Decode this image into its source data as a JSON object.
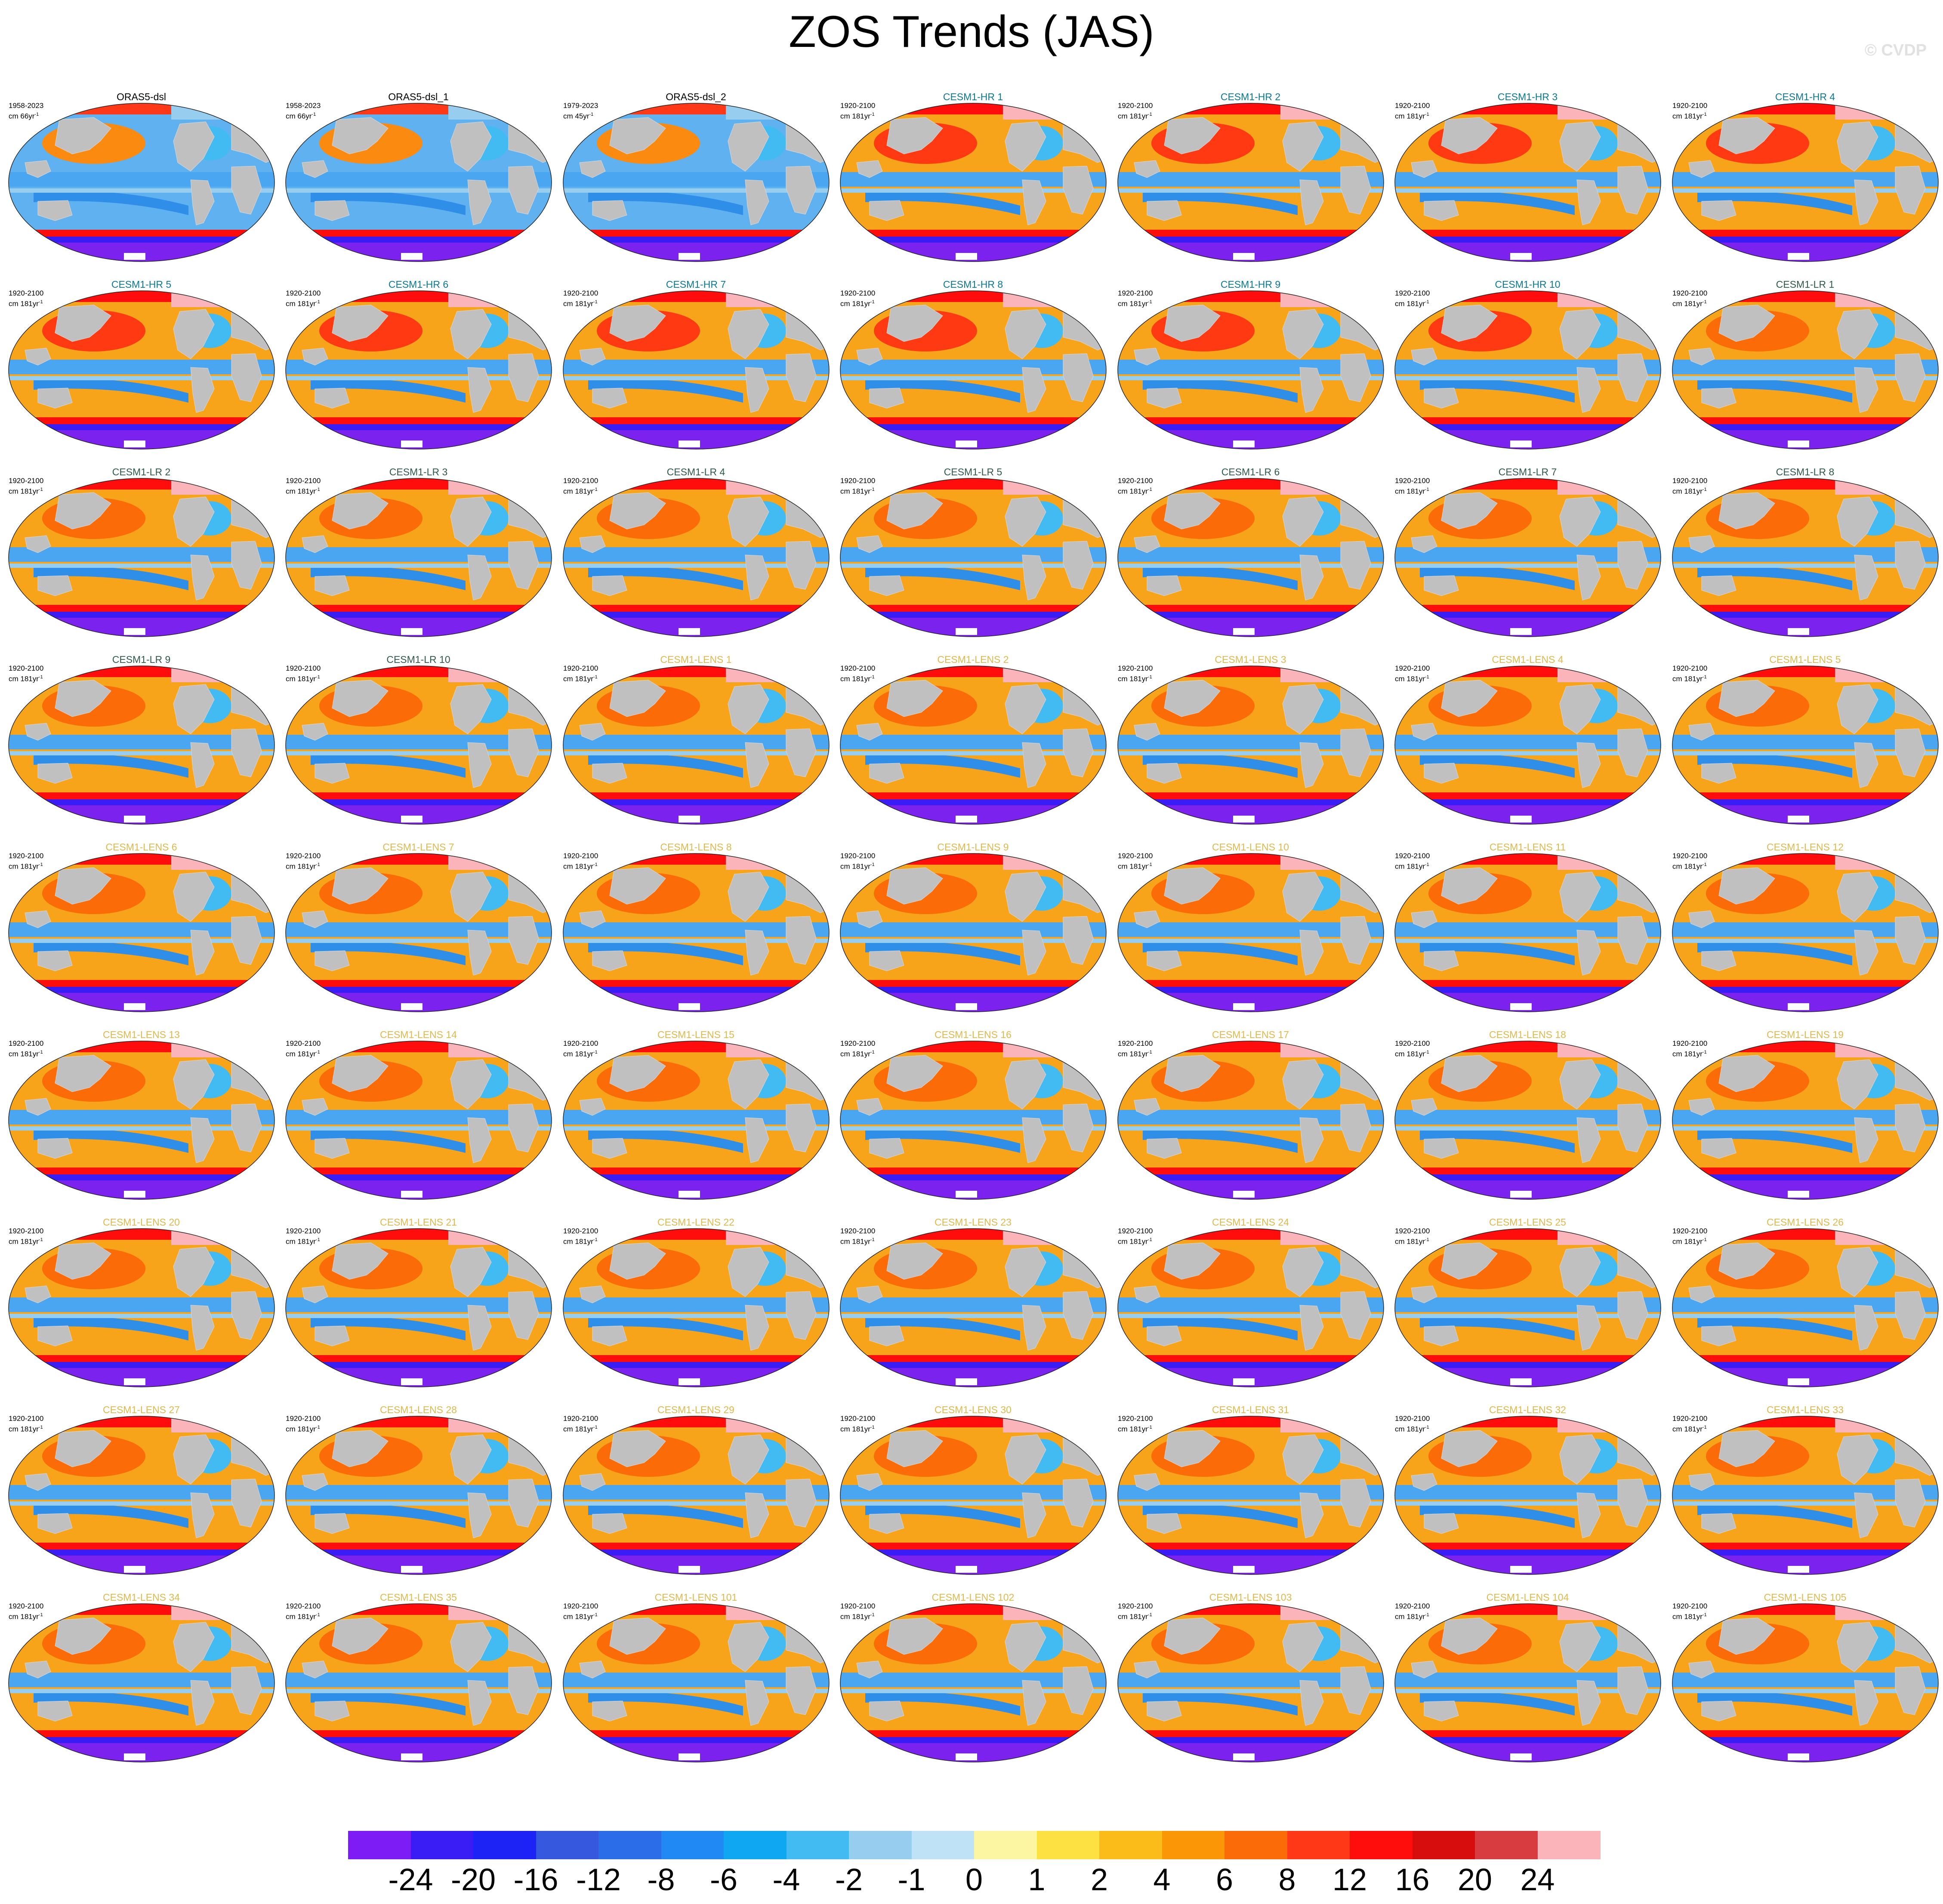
{
  "title": "ZOS Trends (JAS)",
  "watermark": "© CVDP",
  "colors": {
    "ocean_warm": "#f7a41b",
    "ocean_cool": "#4aa6f0",
    "land": "#c0c0c0",
    "southern_ocean": "#7b22ee",
    "title_obs": "#000000",
    "title_hr": "#0a7a93",
    "title_lr": "#2f5a4a",
    "title_lens": "#e0b94c"
  },
  "colorbar": {
    "colors": [
      "#7d1cf5",
      "#3a1cf5",
      "#1e23f5",
      "#3558df",
      "#2b6de8",
      "#2189f4",
      "#10a7f2",
      "#41bbf2",
      "#97cdee",
      "#c0e2f6",
      "#fcf6a2",
      "#fde042",
      "#fbbb19",
      "#fb9707",
      "#fb6c08",
      "#ff3818",
      "#ff0c0c",
      "#d70c0c",
      "#d83b40",
      "#fbb4b9"
    ],
    "labels": [
      "-24",
      "-20",
      "-16",
      "-12",
      "-8",
      "-6",
      "-4",
      "-2",
      "-1",
      "0",
      "1",
      "2",
      "4",
      "6",
      "8",
      "12",
      "16",
      "20",
      "24"
    ]
  },
  "panels": [
    {
      "title": "ORAS5-dsl",
      "period": "1958-2023",
      "units": "cm 66yr",
      "units_exp": "-1",
      "group": "obs"
    },
    {
      "title": "ORAS5-dsl_1",
      "period": "1958-2023",
      "units": "cm 66yr",
      "units_exp": "-1",
      "group": "obs"
    },
    {
      "title": "ORAS5-dsl_2",
      "period": "1979-2023",
      "units": "cm 45yr",
      "units_exp": "-1",
      "group": "obs"
    },
    {
      "title": "CESM1-HR 1",
      "period": "1920-2100",
      "units": "cm 181yr",
      "units_exp": "-1",
      "group": "hr"
    },
    {
      "title": "CESM1-HR 2",
      "period": "1920-2100",
      "units": "cm 181yr",
      "units_exp": "-1",
      "group": "hr"
    },
    {
      "title": "CESM1-HR 3",
      "period": "1920-2100",
      "units": "cm 181yr",
      "units_exp": "-1",
      "group": "hr"
    },
    {
      "title": "CESM1-HR 4",
      "period": "1920-2100",
      "units": "cm 181yr",
      "units_exp": "-1",
      "group": "hr"
    },
    {
      "title": "CESM1-HR 5",
      "period": "1920-2100",
      "units": "cm 181yr",
      "units_exp": "-1",
      "group": "hr"
    },
    {
      "title": "CESM1-HR 6",
      "period": "1920-2100",
      "units": "cm 181yr",
      "units_exp": "-1",
      "group": "hr"
    },
    {
      "title": "CESM1-HR 7",
      "period": "1920-2100",
      "units": "cm 181yr",
      "units_exp": "-1",
      "group": "hr"
    },
    {
      "title": "CESM1-HR 8",
      "period": "1920-2100",
      "units": "cm 181yr",
      "units_exp": "-1",
      "group": "hr"
    },
    {
      "title": "CESM1-HR 9",
      "period": "1920-2100",
      "units": "cm 181yr",
      "units_exp": "-1",
      "group": "hr"
    },
    {
      "title": "CESM1-HR 10",
      "period": "1920-2100",
      "units": "cm 181yr",
      "units_exp": "-1",
      "group": "hr"
    },
    {
      "title": "CESM1-LR 1",
      "period": "1920-2100",
      "units": "cm 181yr",
      "units_exp": "-1",
      "group": "lr"
    },
    {
      "title": "CESM1-LR 2",
      "period": "1920-2100",
      "units": "cm 181yr",
      "units_exp": "-1",
      "group": "lr"
    },
    {
      "title": "CESM1-LR 3",
      "period": "1920-2100",
      "units": "cm 181yr",
      "units_exp": "-1",
      "group": "lr"
    },
    {
      "title": "CESM1-LR 4",
      "period": "1920-2100",
      "units": "cm 181yr",
      "units_exp": "-1",
      "group": "lr"
    },
    {
      "title": "CESM1-LR 5",
      "period": "1920-2100",
      "units": "cm 181yr",
      "units_exp": "-1",
      "group": "lr"
    },
    {
      "title": "CESM1-LR 6",
      "period": "1920-2100",
      "units": "cm 181yr",
      "units_exp": "-1",
      "group": "lr"
    },
    {
      "title": "CESM1-LR 7",
      "period": "1920-2100",
      "units": "cm 181yr",
      "units_exp": "-1",
      "group": "lr"
    },
    {
      "title": "CESM1-LR 8",
      "period": "1920-2100",
      "units": "cm 181yr",
      "units_exp": "-1",
      "group": "lr"
    },
    {
      "title": "CESM1-LR 9",
      "period": "1920-2100",
      "units": "cm 181yr",
      "units_exp": "-1",
      "group": "lr"
    },
    {
      "title": "CESM1-LR 10",
      "period": "1920-2100",
      "units": "cm 181yr",
      "units_exp": "-1",
      "group": "lr"
    },
    {
      "title": "CESM1-LENS 1",
      "period": "1920-2100",
      "units": "cm 181yr",
      "units_exp": "-1",
      "group": "lens"
    },
    {
      "title": "CESM1-LENS 2",
      "period": "1920-2100",
      "units": "cm 181yr",
      "units_exp": "-1",
      "group": "lens"
    },
    {
      "title": "CESM1-LENS 3",
      "period": "1920-2100",
      "units": "cm 181yr",
      "units_exp": "-1",
      "group": "lens"
    },
    {
      "title": "CESM1-LENS 4",
      "period": "1920-2100",
      "units": "cm 181yr",
      "units_exp": "-1",
      "group": "lens"
    },
    {
      "title": "CESM1-LENS 5",
      "period": "1920-2100",
      "units": "cm 181yr",
      "units_exp": "-1",
      "group": "lens"
    },
    {
      "title": "CESM1-LENS 6",
      "period": "1920-2100",
      "units": "cm 181yr",
      "units_exp": "-1",
      "group": "lens"
    },
    {
      "title": "CESM1-LENS 7",
      "period": "1920-2100",
      "units": "cm 181yr",
      "units_exp": "-1",
      "group": "lens"
    },
    {
      "title": "CESM1-LENS 8",
      "period": "1920-2100",
      "units": "cm 181yr",
      "units_exp": "-1",
      "group": "lens"
    },
    {
      "title": "CESM1-LENS 9",
      "period": "1920-2100",
      "units": "cm 181yr",
      "units_exp": "-1",
      "group": "lens"
    },
    {
      "title": "CESM1-LENS 10",
      "period": "1920-2100",
      "units": "cm 181yr",
      "units_exp": "-1",
      "group": "lens"
    },
    {
      "title": "CESM1-LENS 11",
      "period": "1920-2100",
      "units": "cm 181yr",
      "units_exp": "-1",
      "group": "lens"
    },
    {
      "title": "CESM1-LENS 12",
      "period": "1920-2100",
      "units": "cm 181yr",
      "units_exp": "-1",
      "group": "lens"
    },
    {
      "title": "CESM1-LENS 13",
      "period": "1920-2100",
      "units": "cm 181yr",
      "units_exp": "-1",
      "group": "lens"
    },
    {
      "title": "CESM1-LENS 14",
      "period": "1920-2100",
      "units": "cm 181yr",
      "units_exp": "-1",
      "group": "lens"
    },
    {
      "title": "CESM1-LENS 15",
      "period": "1920-2100",
      "units": "cm 181yr",
      "units_exp": "-1",
      "group": "lens"
    },
    {
      "title": "CESM1-LENS 16",
      "period": "1920-2100",
      "units": "cm 181yr",
      "units_exp": "-1",
      "group": "lens"
    },
    {
      "title": "CESM1-LENS 17",
      "period": "1920-2100",
      "units": "cm 181yr",
      "units_exp": "-1",
      "group": "lens"
    },
    {
      "title": "CESM1-LENS 18",
      "period": "1920-2100",
      "units": "cm 181yr",
      "units_exp": "-1",
      "group": "lens"
    },
    {
      "title": "CESM1-LENS 19",
      "period": "1920-2100",
      "units": "cm 181yr",
      "units_exp": "-1",
      "group": "lens"
    },
    {
      "title": "CESM1-LENS 20",
      "period": "1920-2100",
      "units": "cm 181yr",
      "units_exp": "-1",
      "group": "lens"
    },
    {
      "title": "CESM1-LENS 21",
      "period": "1920-2100",
      "units": "cm 181yr",
      "units_exp": "-1",
      "group": "lens"
    },
    {
      "title": "CESM1-LENS 22",
      "period": "1920-2100",
      "units": "cm 181yr",
      "units_exp": "-1",
      "group": "lens"
    },
    {
      "title": "CESM1-LENS 23",
      "period": "1920-2100",
      "units": "cm 181yr",
      "units_exp": "-1",
      "group": "lens"
    },
    {
      "title": "CESM1-LENS 24",
      "period": "1920-2100",
      "units": "cm 181yr",
      "units_exp": "-1",
      "group": "lens"
    },
    {
      "title": "CESM1-LENS 25",
      "period": "1920-2100",
      "units": "cm 181yr",
      "units_exp": "-1",
      "group": "lens"
    },
    {
      "title": "CESM1-LENS 26",
      "period": "1920-2100",
      "units": "cm 181yr",
      "units_exp": "-1",
      "group": "lens"
    },
    {
      "title": "CESM1-LENS 27",
      "period": "1920-2100",
      "units": "cm 181yr",
      "units_exp": "-1",
      "group": "lens"
    },
    {
      "title": "CESM1-LENS 28",
      "period": "1920-2100",
      "units": "cm 181yr",
      "units_exp": "-1",
      "group": "lens"
    },
    {
      "title": "CESM1-LENS 29",
      "period": "1920-2100",
      "units": "cm 181yr",
      "units_exp": "-1",
      "group": "lens"
    },
    {
      "title": "CESM1-LENS 30",
      "period": "1920-2100",
      "units": "cm 181yr",
      "units_exp": "-1",
      "group": "lens"
    },
    {
      "title": "CESM1-LENS 31",
      "period": "1920-2100",
      "units": "cm 181yr",
      "units_exp": "-1",
      "group": "lens"
    },
    {
      "title": "CESM1-LENS 32",
      "period": "1920-2100",
      "units": "cm 181yr",
      "units_exp": "-1",
      "group": "lens"
    },
    {
      "title": "CESM1-LENS 33",
      "period": "1920-2100",
      "units": "cm 181yr",
      "units_exp": "-1",
      "group": "lens"
    },
    {
      "title": "CESM1-LENS 34",
      "period": "1920-2100",
      "units": "cm 181yr",
      "units_exp": "-1",
      "group": "lens"
    },
    {
      "title": "CESM1-LENS 35",
      "period": "1920-2100",
      "units": "cm 181yr",
      "units_exp": "-1",
      "group": "lens"
    },
    {
      "title": "CESM1-LENS 101",
      "period": "1920-2100",
      "units": "cm 181yr",
      "units_exp": "-1",
      "group": "lens"
    },
    {
      "title": "CESM1-LENS 102",
      "period": "1920-2100",
      "units": "cm 181yr",
      "units_exp": "-1",
      "group": "lens"
    },
    {
      "title": "CESM1-LENS 103",
      "period": "1920-2100",
      "units": "cm 181yr",
      "units_exp": "-1",
      "group": "lens"
    },
    {
      "title": "CESM1-LENS 104",
      "period": "1920-2100",
      "units": "cm 181yr",
      "units_exp": "-1",
      "group": "lens"
    },
    {
      "title": "CESM1-LENS 105",
      "period": "1920-2100",
      "units": "cm 181yr",
      "units_exp": "-1",
      "group": "lens"
    }
  ]
}
